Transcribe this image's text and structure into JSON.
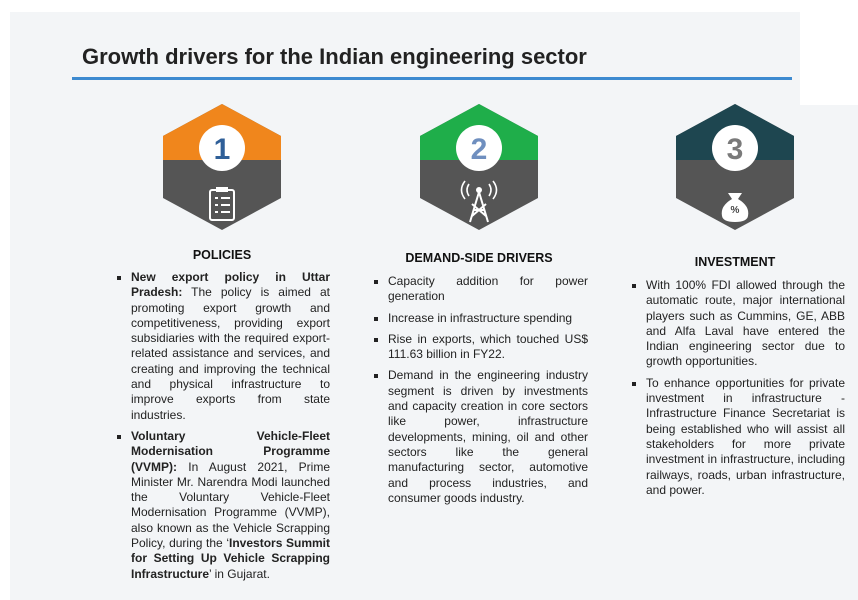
{
  "header": {
    "title": "Growth drivers for the Indian engineering sector"
  },
  "columns": [
    {
      "number": "1",
      "heading": "POLICIES",
      "bullets": [
        [
          {
            "text": "New export policy in Uttar Pradesh:",
            "bold": true
          },
          {
            "text": " The policy is aimed at promoting export growth and competitiveness, providing export subsidiaries with the required export-related assistance and services, and creating and improving the technical and physical infrastructure to improve exports from state industries."
          }
        ],
        [
          {
            "text": "Voluntary Vehicle-Fleet Modernisation Programme (VVMP):",
            "bold": true
          },
          {
            "text": " In August 2021, Prime Minister Mr. Narendra Modi launched the Voluntary Vehicle-Fleet Modernisation Programme (VVMP), also known as the Vehicle Scrapping Policy, during the ‘"
          },
          {
            "text": "Investors Summit for Setting Up Vehicle Scrapping Infrastructure",
            "bold": true
          },
          {
            "text": "’ in Gujarat."
          }
        ]
      ]
    },
    {
      "number": "2",
      "heading": "DEMAND-SIDE DRIVERS",
      "bullets": [
        [
          {
            "text": "Capacity addition for power generation"
          }
        ],
        [
          {
            "text": "Increase in infrastructure spending"
          }
        ],
        [
          {
            "text": "Rise in exports, which touched US$ 111.63 billion in FY22."
          }
        ],
        [
          {
            "text": "Demand in the engineering industry segment is driven by investments and capacity creation in core sectors like power, infrastructure developments, mining, oil and other sectors like the general manufacturing sector, automotive and process industries, and consumer goods industry."
          }
        ]
      ]
    },
    {
      "number": "3",
      "heading": "INVESTMENT",
      "bullets": [
        [
          {
            "text": "With 100% FDI allowed through the automatic route, major international players such as Cummins, GE, ABB and Alfa Laval have entered the Indian engineering sector due to growth opportunities."
          }
        ],
        [
          {
            "text": "To enhance opportunities for private investment in infrastructure - Infrastructure Finance Secretariat is being established who will assist all stakeholders for more private investment in infrastructure, including railways, roads, urban infrastructure, and power."
          }
        ]
      ]
    }
  ]
}
